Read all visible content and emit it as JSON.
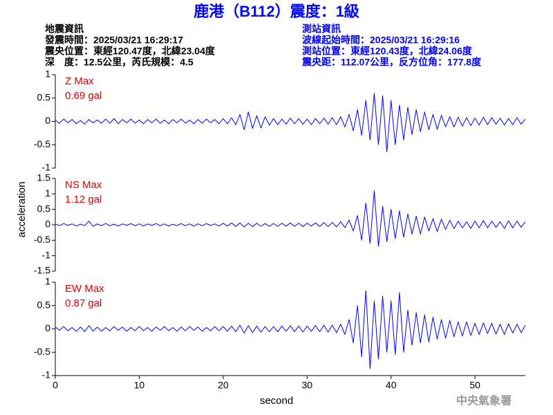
{
  "header": {
    "title": "鹿港（B112）震度：1級",
    "quake": [
      "地震資訊",
      "發震時間：2025/03/21 16:29:17",
      "震央位置：東經120.47度，北緯23.04度",
      "深　度：12.5公里，芮氏規模：4.5"
    ],
    "station": [
      "測站資訊",
      "波線起始時間：2025/03/21 16:29:16",
      "測站位置：東經120.43度，北緯24.06度",
      "震央距：112.07公里，反方位角：177.8度"
    ],
    "ylabel": "acceleration",
    "xlabel": "second",
    "agency": "中央氣象署"
  },
  "chart_data": [
    {
      "type": "line",
      "color": "#0000ff",
      "annotations": [
        "Z Max",
        "0.69 gal"
      ],
      "xlim": [
        0,
        56
      ],
      "ylim": [
        -1,
        1
      ],
      "yticks": [
        -1,
        -0.5,
        0,
        0.5,
        1
      ],
      "x": [
        0,
        0.5,
        1,
        1.5,
        2,
        2.5,
        3,
        3.5,
        4,
        4.5,
        5,
        5.5,
        6,
        6.5,
        7,
        7.5,
        8,
        8.5,
        9,
        9.5,
        10,
        10.5,
        11,
        11.5,
        12,
        12.5,
        13,
        13.5,
        14,
        14.5,
        15,
        15.5,
        16,
        16.5,
        17,
        17.5,
        18,
        18.5,
        19,
        19.5,
        20,
        20.5,
        21,
        21.5,
        22,
        22.5,
        23,
        23.5,
        24,
        24.5,
        25,
        25.5,
        26,
        26.5,
        27,
        27.5,
        28,
        28.5,
        29,
        29.5,
        30,
        30.5,
        31,
        31.5,
        32,
        32.5,
        33,
        33.5,
        34,
        34.5,
        35,
        35.5,
        36,
        36.5,
        37,
        37.5,
        38,
        38.5,
        39,
        39.5,
        40,
        40.5,
        41,
        41.5,
        42,
        42.5,
        43,
        43.5,
        44,
        44.5,
        45,
        45.5,
        46,
        46.5,
        47,
        47.5,
        48,
        48.5,
        49,
        49.5,
        50,
        50.5,
        51,
        51.5,
        52,
        52.5,
        53,
        53.5,
        54,
        54.5,
        55,
        55.5,
        56
      ],
      "values": [
        0.03,
        -0.04,
        0.05,
        -0.03,
        0.04,
        -0.05,
        0.02,
        -0.06,
        0.04,
        -0.03,
        0.03,
        -0.04,
        0.05,
        -0.04,
        0.06,
        -0.05,
        0.04,
        -0.03,
        0.05,
        -0.04,
        0.03,
        -0.05,
        0.04,
        -0.03,
        0.05,
        -0.04,
        0.03,
        -0.05,
        0.04,
        -0.03,
        0.05,
        -0.04,
        0.03,
        -0.05,
        0.04,
        -0.04,
        0.05,
        -0.03,
        0.04,
        -0.05,
        0.06,
        -0.05,
        0.08,
        -0.07,
        0.15,
        -0.18,
        0.2,
        -0.15,
        0.12,
        -0.14,
        0.1,
        -0.08,
        0.06,
        -0.07,
        0.05,
        -0.06,
        0.07,
        -0.05,
        0.06,
        -0.06,
        0.05,
        -0.07,
        0.06,
        -0.05,
        0.07,
        -0.06,
        0.08,
        -0.07,
        0.1,
        -0.12,
        0.15,
        -0.2,
        0.25,
        -0.3,
        0.45,
        -0.4,
        0.6,
        -0.5,
        0.55,
        -0.65,
        0.45,
        -0.5,
        0.35,
        -0.4,
        0.3,
        -0.28,
        0.25,
        -0.22,
        0.2,
        -0.18,
        0.15,
        -0.17,
        0.13,
        -0.12,
        0.1,
        -0.12,
        0.09,
        -0.1,
        0.08,
        -0.09,
        0.07,
        -0.08,
        0.09,
        -0.07,
        0.08,
        -0.06,
        0.07,
        -0.08,
        0.06,
        -0.07,
        0.08,
        -0.06,
        0.05
      ]
    },
    {
      "type": "line",
      "color": "#0000ff",
      "annotations": [
        "NS Max",
        "1.12 gal"
      ],
      "xlim": [
        0,
        56
      ],
      "ylim": [
        -1.5,
        1.5
      ],
      "yticks": [
        -1.5,
        -1,
        -0.5,
        0,
        0.5,
        1,
        1.5
      ],
      "x": [
        0,
        0.5,
        1,
        1.5,
        2,
        2.5,
        3,
        3.5,
        4,
        4.5,
        5,
        5.5,
        6,
        6.5,
        7,
        7.5,
        8,
        8.5,
        9,
        9.5,
        10,
        10.5,
        11,
        11.5,
        12,
        12.5,
        13,
        13.5,
        14,
        14.5,
        15,
        15.5,
        16,
        16.5,
        17,
        17.5,
        18,
        18.5,
        19,
        19.5,
        20,
        20.5,
        21,
        21.5,
        22,
        22.5,
        23,
        23.5,
        24,
        24.5,
        25,
        25.5,
        26,
        26.5,
        27,
        27.5,
        28,
        28.5,
        29,
        29.5,
        30,
        30.5,
        31,
        31.5,
        32,
        32.5,
        33,
        33.5,
        34,
        34.5,
        35,
        35.5,
        36,
        36.5,
        37,
        37.5,
        38,
        38.5,
        39,
        39.5,
        40,
        40.5,
        41,
        41.5,
        42,
        42.5,
        43,
        43.5,
        44,
        44.5,
        45,
        45.5,
        46,
        46.5,
        47,
        47.5,
        48,
        48.5,
        49,
        49.5,
        50,
        50.5,
        51,
        51.5,
        52,
        52.5,
        53,
        53.5,
        54,
        54.5,
        55,
        55.5,
        56
      ],
      "values": [
        0.03,
        -0.03,
        0.04,
        -0.02,
        0.03,
        -0.04,
        0.02,
        -0.03,
        0.12,
        -0.05,
        0.03,
        -0.03,
        0.04,
        -0.03,
        0.02,
        -0.04,
        0.03,
        -0.02,
        0.04,
        -0.03,
        0.03,
        -0.04,
        0.03,
        -0.02,
        0.04,
        -0.03,
        0.03,
        -0.04,
        0.02,
        -0.03,
        0.04,
        -0.03,
        0.03,
        -0.04,
        0.03,
        -0.03,
        0.04,
        -0.02,
        0.03,
        -0.04,
        0.05,
        -0.04,
        0.06,
        -0.05,
        0.06,
        -0.07,
        0.05,
        -0.06,
        0.05,
        -0.05,
        0.04,
        -0.05,
        0.04,
        -0.05,
        0.05,
        -0.04,
        0.06,
        -0.05,
        0.05,
        -0.06,
        0.05,
        -0.04,
        0.06,
        -0.05,
        0.07,
        -0.06,
        0.08,
        -0.07,
        0.1,
        -0.09,
        0.15,
        -0.2,
        0.3,
        -0.5,
        0.7,
        -0.6,
        1.1,
        -0.7,
        0.6,
        -0.55,
        0.5,
        -0.45,
        0.45,
        -0.4,
        0.35,
        -0.3,
        0.28,
        -0.3,
        0.25,
        -0.2,
        0.2,
        -0.22,
        0.18,
        -0.15,
        0.15,
        -0.12,
        0.12,
        -0.1,
        0.1,
        -0.12,
        0.12,
        -0.1,
        0.14,
        -0.1,
        0.12,
        -0.08,
        0.1,
        -0.12,
        0.13,
        -0.1,
        0.12,
        -0.08,
        0.1
      ]
    },
    {
      "type": "line",
      "color": "#0000ff",
      "annotations": [
        "EW Max",
        "0.87 gal"
      ],
      "xlim": [
        0,
        56
      ],
      "ylim": [
        -1,
        1
      ],
      "yticks": [
        -1,
        -0.5,
        0,
        0.5,
        1
      ],
      "xticks": [
        0,
        10,
        20,
        30,
        40,
        50
      ],
      "x": [
        0,
        0.5,
        1,
        1.5,
        2,
        2.5,
        3,
        3.5,
        4,
        4.5,
        5,
        5.5,
        6,
        6.5,
        7,
        7.5,
        8,
        8.5,
        9,
        9.5,
        10,
        10.5,
        11,
        11.5,
        12,
        12.5,
        13,
        13.5,
        14,
        14.5,
        15,
        15.5,
        16,
        16.5,
        17,
        17.5,
        18,
        18.5,
        19,
        19.5,
        20,
        20.5,
        21,
        21.5,
        22,
        22.5,
        23,
        23.5,
        24,
        24.5,
        25,
        25.5,
        26,
        26.5,
        27,
        27.5,
        28,
        28.5,
        29,
        29.5,
        30,
        30.5,
        31,
        31.5,
        32,
        32.5,
        33,
        33.5,
        34,
        34.5,
        35,
        35.5,
        36,
        36.5,
        37,
        37.5,
        38,
        38.5,
        39,
        39.5,
        40,
        40.5,
        41,
        41.5,
        42,
        42.5,
        43,
        43.5,
        44,
        44.5,
        45,
        45.5,
        46,
        46.5,
        47,
        47.5,
        48,
        48.5,
        49,
        49.5,
        50,
        50.5,
        51,
        51.5,
        52,
        52.5,
        53,
        53.5,
        54,
        54.5,
        55,
        55.5,
        56
      ],
      "values": [
        0.04,
        -0.03,
        0.05,
        -0.04,
        0.03,
        -0.05,
        0.04,
        -0.06,
        0.07,
        -0.05,
        0.04,
        -0.05,
        0.03,
        -0.04,
        0.05,
        -0.03,
        0.04,
        -0.05,
        0.03,
        -0.04,
        0.05,
        -0.04,
        0.03,
        -0.05,
        0.04,
        -0.03,
        0.05,
        -0.04,
        0.03,
        -0.05,
        0.04,
        -0.04,
        0.05,
        -0.03,
        0.04,
        -0.05,
        0.03,
        -0.04,
        0.05,
        -0.04,
        0.05,
        -0.05,
        0.06,
        -0.06,
        0.08,
        -0.09,
        0.07,
        -0.08,
        0.06,
        -0.07,
        0.05,
        -0.06,
        0.05,
        -0.06,
        0.06,
        -0.05,
        0.07,
        -0.06,
        0.06,
        -0.07,
        0.06,
        -0.05,
        0.07,
        -0.06,
        0.08,
        -0.07,
        0.08,
        -0.08,
        0.1,
        -0.12,
        0.2,
        -0.3,
        0.5,
        -0.6,
        0.82,
        -0.85,
        0.6,
        -0.65,
        0.7,
        -0.5,
        0.6,
        -0.55,
        0.78,
        -0.5,
        0.4,
        -0.35,
        0.35,
        -0.3,
        0.3,
        -0.28,
        0.25,
        -0.22,
        0.2,
        -0.2,
        0.18,
        -0.17,
        0.15,
        -0.15,
        0.15,
        -0.14,
        0.12,
        -0.12,
        0.13,
        -0.1,
        0.12,
        -0.11,
        0.1,
        -0.12,
        0.11,
        -0.09,
        0.1,
        -0.08,
        0.08
      ]
    }
  ]
}
